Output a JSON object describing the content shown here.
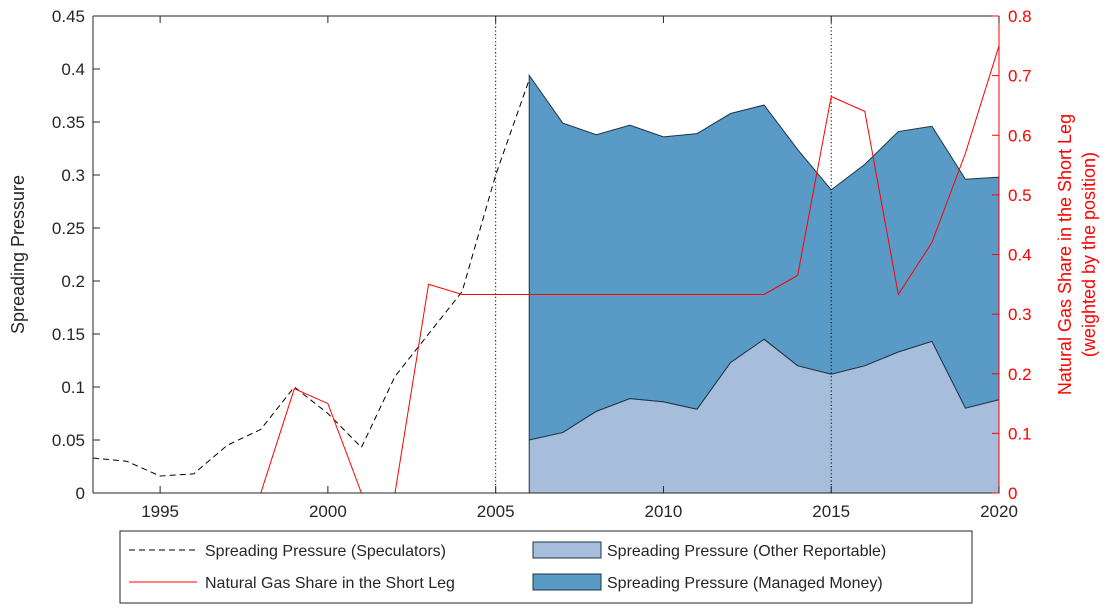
{
  "chart_data": {
    "type": "area",
    "x_ticks": [
      1995,
      2000,
      2005,
      2010,
      2015,
      2020
    ],
    "xlim": [
      1993,
      2020
    ],
    "ylabel_left": "Spreading Pressure",
    "ylim_left": [
      0,
      0.45
    ],
    "yticks_left": [
      "0",
      "0.05",
      "0.1",
      "0.15",
      "0.2",
      "0.25",
      "0.3",
      "0.35",
      "0.4",
      "0.45"
    ],
    "ylabel_right_line1": "Natural Gas Share in the Short Leg",
    "ylabel_right_line2": "(weighted by the position)",
    "ylim_right": [
      0,
      0.8
    ],
    "yticks_right": [
      "0",
      "0.1",
      "0.2",
      "0.3",
      "0.4",
      "0.5",
      "0.6",
      "0.7",
      "0.8"
    ],
    "vlines": [
      2005,
      2015
    ],
    "colors": {
      "speculators": "#000000",
      "natural_gas": "#ff0000",
      "other_reportable": "#a6bddb",
      "managed_money": "#5a9ac6",
      "right_axis": "#ff0000"
    },
    "series": [
      {
        "name": "Spreading Pressure (Speculators)",
        "style": "dashed-line",
        "axis": "left",
        "x": [
          1993,
          1994,
          1995,
          1996,
          1997,
          1998,
          1999,
          2000,
          2001,
          2002,
          2003,
          2004,
          2005,
          2006
        ],
        "values": [
          0.033,
          0.03,
          0.016,
          0.018,
          0.045,
          0.06,
          0.1,
          0.075,
          0.043,
          0.11,
          0.15,
          0.19,
          0.3,
          0.39
        ]
      },
      {
        "name": "Natural Gas Share in the Short Leg",
        "style": "solid-line",
        "axis": "right",
        "x": [
          1993,
          1994,
          1995,
          1996,
          1997,
          1998,
          1999,
          2000,
          2001,
          2002,
          2003,
          2004,
          2005,
          2006,
          2007,
          2008,
          2009,
          2010,
          2011,
          2012,
          2013,
          2014,
          2015,
          2016,
          2017,
          2018,
          2019,
          2020
        ],
        "values": [
          0,
          0,
          0,
          0,
          0,
          0,
          0.175,
          0.15,
          0,
          0,
          0.35,
          0.333,
          0.333,
          0.333,
          0.333,
          0.333,
          0.333,
          0.333,
          0.333,
          0.333,
          0.333,
          0.365,
          0.665,
          0.64,
          0.333,
          0.42,
          0.57,
          0.75
        ]
      },
      {
        "name": "Spreading Pressure (Other Reportable)",
        "style": "area",
        "axis": "left",
        "x": [
          2006,
          2007,
          2008,
          2009,
          2010,
          2011,
          2012,
          2013,
          2014,
          2015,
          2016,
          2017,
          2018,
          2019,
          2020
        ],
        "values": [
          0.05,
          0.057,
          0.077,
          0.089,
          0.086,
          0.079,
          0.123,
          0.145,
          0.12,
          0.112,
          0.12,
          0.133,
          0.143,
          0.08,
          0.088
        ]
      },
      {
        "name": "Spreading Pressure (Managed Money)",
        "style": "area-stacked",
        "axis": "left",
        "x": [
          2006,
          2007,
          2008,
          2009,
          2010,
          2011,
          2012,
          2013,
          2014,
          2015,
          2016,
          2017,
          2018,
          2019,
          2020
        ],
        "values": [
          0.344,
          0.292,
          0.261,
          0.258,
          0.25,
          0.26,
          0.235,
          0.221,
          0.204,
          0.174,
          0.19,
          0.208,
          0.203,
          0.216,
          0.21
        ]
      }
    ],
    "legend": {
      "placement": "bottom",
      "entries": [
        "Spreading Pressure (Speculators)",
        "Spreading Pressure (Other Reportable)",
        "Natural Gas Share in the Short Leg",
        "Spreading Pressure (Managed Money)"
      ]
    }
  }
}
